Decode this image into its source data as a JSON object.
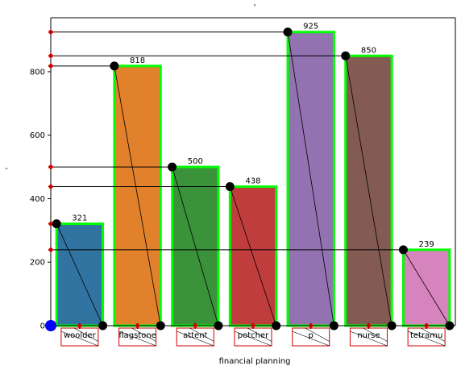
{
  "chart_data": {
    "type": "bar",
    "title": "'",
    "xlabel": "financial planning",
    "ylabel": "-",
    "categories": [
      "woolder",
      "flagstone",
      "attent",
      "potcher",
      "p",
      "nurse",
      "tetramu"
    ],
    "values": [
      321,
      818,
      500,
      438,
      925,
      850,
      239
    ],
    "ylim": [
      0,
      970
    ],
    "yticks": [
      0,
      200,
      400,
      600,
      800
    ],
    "grid": false,
    "legend": "none",
    "colors": {
      "bars": [
        "#3274a1",
        "#e1812c",
        "#3a923a",
        "#c03d3e",
        "#9372b2",
        "#845b53",
        "#d684bd"
      ],
      "bar_edge": "#00ff00",
      "marker": "#000000",
      "diamond": "#cc0000",
      "origin_dot": "#0000ff"
    }
  }
}
